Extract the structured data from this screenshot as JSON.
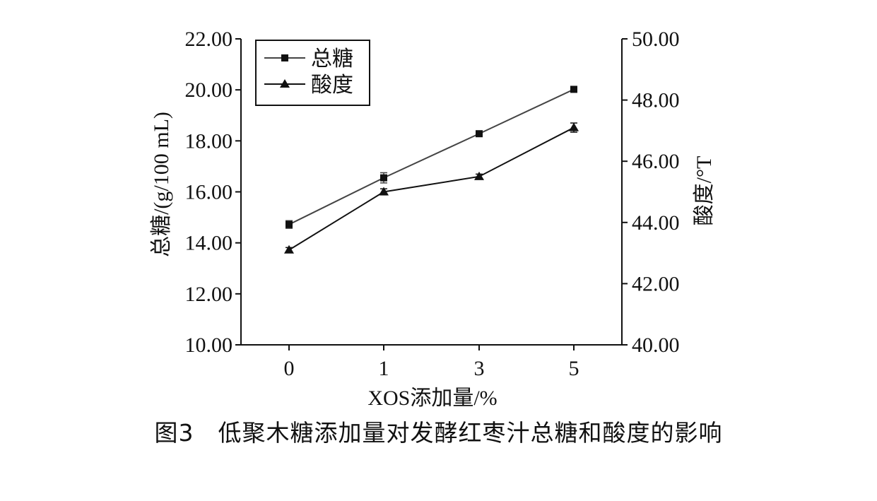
{
  "caption": "图3　低聚木糖添加量对发酵红枣汁总糖和酸度的影响",
  "chart_data": {
    "type": "line",
    "categories": [
      "0",
      "1",
      "3",
      "5"
    ],
    "xlabel": "XOS添加量/%",
    "ylabel_left": "总糖/(g/100 mL)",
    "ylabel_right": "酸度/°T",
    "ylim_left": [
      10,
      22
    ],
    "ylim_right": [
      40,
      50
    ],
    "yticks_left": [
      "10.00",
      "12.00",
      "14.00",
      "16.00",
      "18.00",
      "20.00",
      "22.00"
    ],
    "yticks_right": [
      "40.00",
      "42.00",
      "44.00",
      "46.00",
      "48.00",
      "50.00"
    ],
    "legend_position": "top-left",
    "series": [
      {
        "name": "总糖",
        "axis": "left",
        "marker": "square",
        "color": "#444444",
        "values": [
          14.72,
          16.55,
          18.28,
          20.02
        ],
        "errors": [
          0.15,
          0.2,
          0.08,
          0.06
        ]
      },
      {
        "name": "酸度",
        "axis": "right",
        "marker": "triangle",
        "color": "#111111",
        "values": [
          43.1,
          45.0,
          45.5,
          47.1
        ],
        "errors": [
          0.08,
          0.1,
          0.08,
          0.15
        ]
      }
    ]
  }
}
